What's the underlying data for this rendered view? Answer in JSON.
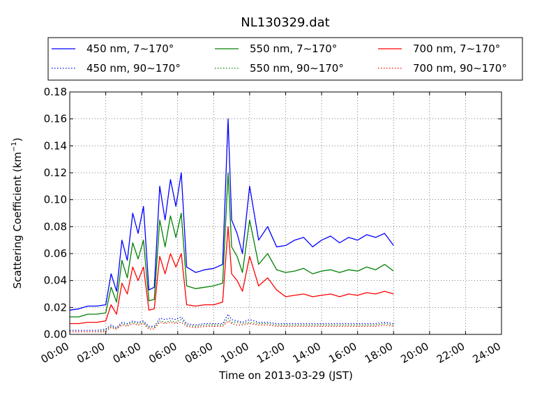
{
  "chart_data": {
    "type": "line",
    "title": "NL130329.dat",
    "xlabel": "Time on 2013-03-29 (JST)",
    "ylabel_main": "Scattering Coefficient (km",
    "ylabel_sup": "−1",
    "ylabel_end": ")",
    "xlim_hours": [
      0,
      24
    ],
    "ylim": [
      0,
      0.18
    ],
    "x_ticks": [
      "00:00",
      "02:00",
      "04:00",
      "06:00",
      "08:00",
      "10:00",
      "12:00",
      "14:00",
      "16:00",
      "18:00",
      "20:00",
      "22:00",
      "24:00"
    ],
    "y_ticks": [
      "0.00",
      "0.02",
      "0.04",
      "0.06",
      "0.08",
      "0.10",
      "0.12",
      "0.14",
      "0.16",
      "0.18"
    ],
    "grid": true,
    "legend_position": "top",
    "colors": {
      "blue": "#0000ff",
      "green": "#008000",
      "red": "#ff0000"
    },
    "x_hours": [
      0,
      0.5,
      1,
      1.5,
      2,
      2.3,
      2.6,
      2.9,
      3.2,
      3.5,
      3.8,
      4.1,
      4.4,
      4.7,
      5,
      5.3,
      5.6,
      5.9,
      6.2,
      6.5,
      7,
      7.5,
      8,
      8.5,
      8.8,
      9.0,
      9.3,
      9.6,
      10,
      10.5,
      11,
      11.5,
      12,
      12.5,
      13,
      13.5,
      14,
      14.5,
      15,
      15.5,
      16,
      16.5,
      17,
      17.5,
      18
    ],
    "series": [
      {
        "name": "450 nm, 7∼170°",
        "color": "#0000ff",
        "style": "solid",
        "values": [
          0.018,
          0.019,
          0.021,
          0.021,
          0.022,
          0.045,
          0.032,
          0.07,
          0.055,
          0.09,
          0.075,
          0.095,
          0.033,
          0.035,
          0.11,
          0.085,
          0.115,
          0.095,
          0.12,
          0.05,
          0.046,
          0.048,
          0.049,
          0.052,
          0.16,
          0.085,
          0.075,
          0.06,
          0.11,
          0.07,
          0.08,
          0.065,
          0.066,
          0.07,
          0.072,
          0.065,
          0.07,
          0.073,
          0.068,
          0.072,
          0.07,
          0.074,
          0.072,
          0.075,
          0.066
        ]
      },
      {
        "name": "550 nm, 7∼170°",
        "color": "#008000",
        "style": "solid",
        "values": [
          0.013,
          0.013,
          0.015,
          0.015,
          0.016,
          0.035,
          0.024,
          0.055,
          0.042,
          0.068,
          0.056,
          0.07,
          0.025,
          0.026,
          0.085,
          0.065,
          0.088,
          0.072,
          0.09,
          0.036,
          0.034,
          0.035,
          0.036,
          0.038,
          0.12,
          0.065,
          0.058,
          0.046,
          0.085,
          0.052,
          0.06,
          0.048,
          0.046,
          0.047,
          0.049,
          0.045,
          0.047,
          0.048,
          0.046,
          0.048,
          0.047,
          0.05,
          0.048,
          0.052,
          0.047
        ]
      },
      {
        "name": "700 nm, 7∼170°",
        "color": "#ff0000",
        "style": "solid",
        "values": [
          0.008,
          0.008,
          0.009,
          0.009,
          0.01,
          0.022,
          0.015,
          0.038,
          0.03,
          0.05,
          0.04,
          0.05,
          0.018,
          0.019,
          0.058,
          0.045,
          0.06,
          0.05,
          0.06,
          0.022,
          0.021,
          0.022,
          0.022,
          0.024,
          0.08,
          0.045,
          0.04,
          0.032,
          0.058,
          0.036,
          0.042,
          0.033,
          0.028,
          0.029,
          0.03,
          0.028,
          0.029,
          0.03,
          0.028,
          0.03,
          0.029,
          0.031,
          0.03,
          0.032,
          0.03
        ]
      },
      {
        "name": "450 nm, 90∼170°",
        "color": "#0000ff",
        "style": "dotted",
        "values": [
          0.003,
          0.003,
          0.003,
          0.003,
          0.004,
          0.007,
          0.005,
          0.009,
          0.008,
          0.01,
          0.009,
          0.01,
          0.006,
          0.006,
          0.012,
          0.011,
          0.012,
          0.011,
          0.013,
          0.008,
          0.007,
          0.008,
          0.008,
          0.008,
          0.015,
          0.011,
          0.01,
          0.009,
          0.011,
          0.009,
          0.009,
          0.008,
          0.008,
          0.008,
          0.008,
          0.008,
          0.008,
          0.008,
          0.008,
          0.008,
          0.008,
          0.008,
          0.008,
          0.009,
          0.008
        ]
      },
      {
        "name": "550 nm, 90∼170°",
        "color": "#008000",
        "style": "dotted",
        "values": [
          0.002,
          0.002,
          0.002,
          0.002,
          0.003,
          0.006,
          0.004,
          0.008,
          0.007,
          0.009,
          0.008,
          0.009,
          0.005,
          0.005,
          0.01,
          0.009,
          0.01,
          0.009,
          0.011,
          0.007,
          0.006,
          0.007,
          0.007,
          0.007,
          0.012,
          0.009,
          0.009,
          0.008,
          0.009,
          0.008,
          0.008,
          0.007,
          0.007,
          0.007,
          0.007,
          0.007,
          0.007,
          0.007,
          0.007,
          0.007,
          0.007,
          0.007,
          0.007,
          0.008,
          0.007
        ]
      },
      {
        "name": "700 nm, 90∼170°",
        "color": "#ff0000",
        "style": "dotted",
        "values": [
          0.002,
          0.002,
          0.002,
          0.002,
          0.002,
          0.005,
          0.004,
          0.007,
          0.006,
          0.008,
          0.007,
          0.008,
          0.004,
          0.004,
          0.009,
          0.008,
          0.009,
          0.008,
          0.009,
          0.006,
          0.005,
          0.006,
          0.006,
          0.006,
          0.01,
          0.008,
          0.007,
          0.007,
          0.008,
          0.007,
          0.007,
          0.006,
          0.006,
          0.006,
          0.006,
          0.006,
          0.006,
          0.006,
          0.006,
          0.006,
          0.006,
          0.006,
          0.006,
          0.007,
          0.006
        ]
      }
    ]
  }
}
